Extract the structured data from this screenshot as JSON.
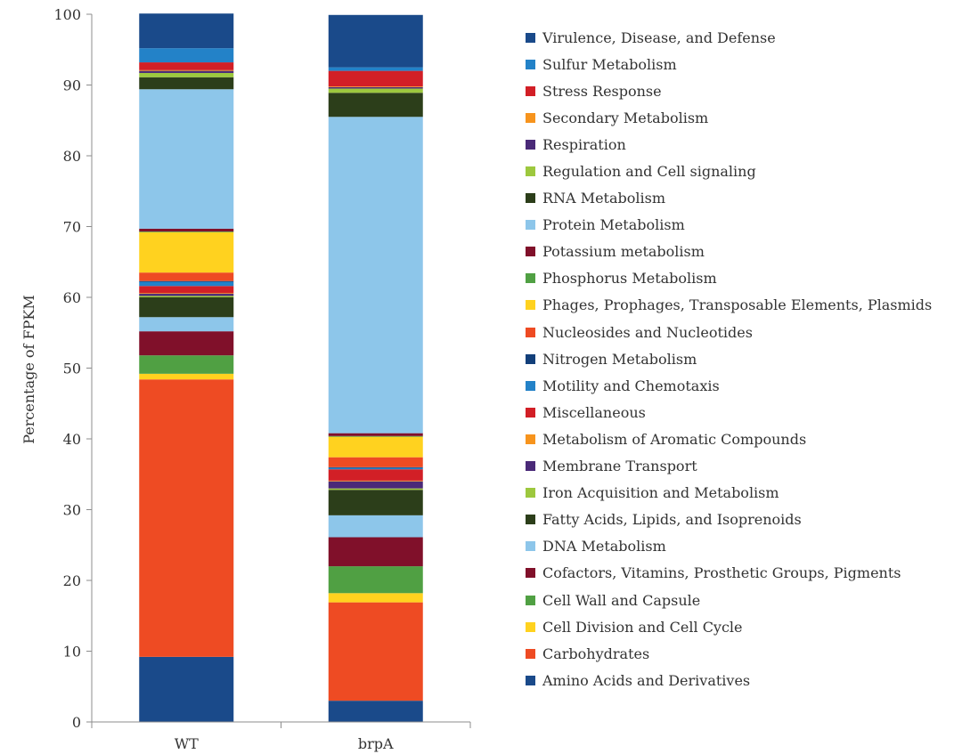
{
  "chart_data": {
    "type": "bar",
    "stacked": true,
    "ylabel": "Percentage of FPKM",
    "xlabel": "",
    "ylim": [
      0,
      100
    ],
    "yticks": [
      0,
      10,
      20,
      30,
      40,
      50,
      60,
      70,
      80,
      90,
      100
    ],
    "grid": false,
    "legend_position": "right",
    "categories": [
      "WT",
      "brpA"
    ],
    "series": [
      {
        "name": "Amino Acids and Derivatives",
        "color": "#1a4a8a",
        "values": [
          9.2,
          3.0
        ]
      },
      {
        "name": "Carbohydrates",
        "color": "#ee4b23",
        "values": [
          39.2,
          13.9
        ]
      },
      {
        "name": "Cell Division and Cell Cycle",
        "color": "#ffd21f",
        "values": [
          0.8,
          1.3
        ]
      },
      {
        "name": "Cell Wall and Capsule",
        "color": "#50a043",
        "values": [
          2.6,
          3.8
        ]
      },
      {
        "name": "Cofactors, Vitamins, Prosthetic Groups, Pigments",
        "color": "#80102a",
        "values": [
          3.4,
          4.1
        ]
      },
      {
        "name": "DNA Metabolism",
        "color": "#8dc6ea",
        "values": [
          2.0,
          3.1
        ]
      },
      {
        "name": "Fatty Acids, Lipids, and Isoprenoids",
        "color": "#2c3e1a",
        "values": [
          2.8,
          3.6
        ]
      },
      {
        "name": "Iron Acquisition and Metabolism",
        "color": "#9dc83e",
        "values": [
          0.2,
          0.2
        ]
      },
      {
        "name": "Membrane Transport",
        "color": "#4a2a78",
        "values": [
          0.3,
          1.0
        ]
      },
      {
        "name": "Metabolism of Aromatic Compounds",
        "color": "#f7941d",
        "values": [
          0.1,
          0.1
        ]
      },
      {
        "name": "Miscellaneous",
        "color": "#d21f26",
        "values": [
          1.0,
          1.6
        ]
      },
      {
        "name": "Motility and Chemotaxis",
        "color": "#2382c8",
        "values": [
          0.6,
          0.2
        ]
      },
      {
        "name": "Nitrogen Metabolism",
        "color": "#123f7a",
        "values": [
          0.1,
          0.1
        ]
      },
      {
        "name": "Nucleosides and Nucleotides",
        "color": "#ee4b23",
        "values": [
          1.2,
          1.4
        ]
      },
      {
        "name": "Phages, Prophages, Transposable Elements, Plasmids",
        "color": "#ffd21f",
        "values": [
          5.7,
          2.9
        ]
      },
      {
        "name": "Phosphorus Metabolism",
        "color": "#50a043",
        "values": [
          0.1,
          0.1
        ]
      },
      {
        "name": "Potassium metabolism",
        "color": "#80102a",
        "values": [
          0.4,
          0.4
        ]
      },
      {
        "name": "Protein Metabolism",
        "color": "#8dc6ea",
        "values": [
          19.7,
          44.7
        ]
      },
      {
        "name": "RNA Metabolism",
        "color": "#2c3e1a",
        "values": [
          1.7,
          3.4
        ]
      },
      {
        "name": "Regulation and Cell signaling",
        "color": "#9dc83e",
        "values": [
          0.6,
          0.6
        ]
      },
      {
        "name": "Respiration",
        "color": "#4a2a78",
        "values": [
          0.3,
          0.2
        ]
      },
      {
        "name": "Secondary Metabolism",
        "color": "#f7941d",
        "values": [
          0.1,
          0.1
        ]
      },
      {
        "name": "Stress Response",
        "color": "#d21f26",
        "values": [
          1.1,
          2.2
        ]
      },
      {
        "name": "Sulfur Metabolism",
        "color": "#2382c8",
        "values": [
          2.0,
          0.5
        ]
      },
      {
        "name": "Virulence, Disease, and Defense",
        "color": "#1a4a8a",
        "values": [
          4.9,
          7.4
        ]
      }
    ]
  }
}
